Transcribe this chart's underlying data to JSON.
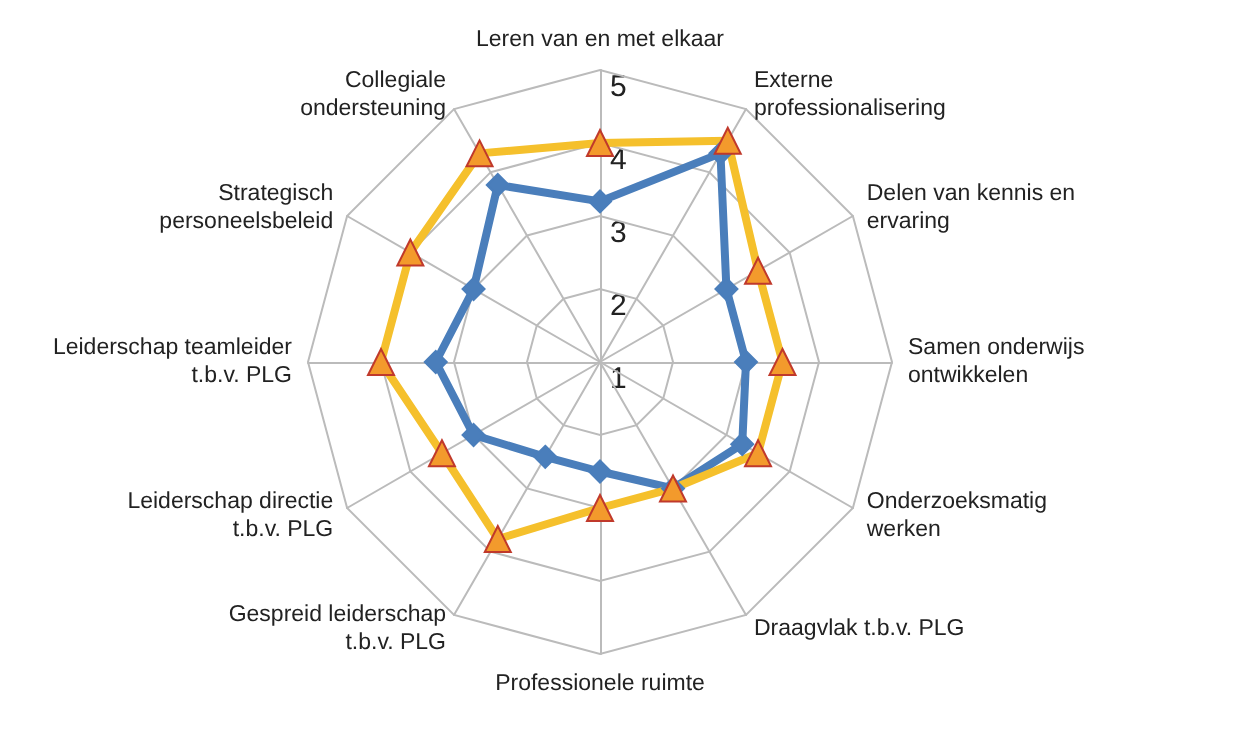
{
  "chart_data": {
    "type": "radar",
    "categories": [
      "Leren van en met elkaar",
      "Externe\nprofessionalisering",
      "Delen van kennis en\nervaring",
      "Samen onderwijs\nontwikkelen",
      "Onderzoeksmatig\nwerken",
      "Draagvlak t.b.v. PLG",
      "Professionele ruimte",
      "Gespreid leiderschap\nt.b.v. PLG",
      "Leiderschap directie\nt.b.v. PLG",
      "Leiderschap teamleider\nt.b.v. PLG",
      "Strategisch\npersoneelsbeleid",
      "Collegiale\nondersteuning"
    ],
    "series": [
      {
        "color": "#4a7ebb",
        "marker": "diamond",
        "values": [
          3.2,
          4.3,
          3.0,
          3.0,
          3.25,
          3.0,
          2.5,
          2.5,
          3.0,
          3.25,
          3.0,
          3.8
        ]
      },
      {
        "color": "#f5c02c",
        "marker": "triangle",
        "values": [
          4.0,
          4.5,
          3.5,
          3.5,
          3.5,
          3.0,
          3.0,
          3.8,
          3.5,
          4.0,
          4.0,
          4.3
        ]
      }
    ],
    "ylim": [
      1,
      5
    ],
    "yticks": [
      1,
      2,
      3,
      4,
      5
    ],
    "grid": true
  }
}
